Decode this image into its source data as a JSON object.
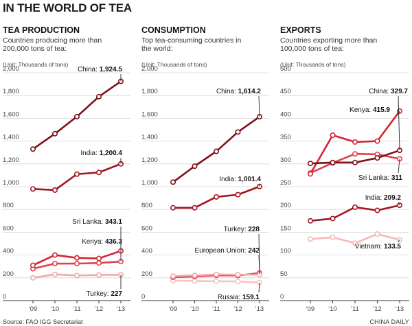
{
  "title": "IN THE WORLD OF TEA",
  "source": "Source: FAO IGG Secretariat",
  "credit": "CHINA DAILY",
  "colors": {
    "China": "#7a1218",
    "India": "#a3151f",
    "Kenya": "#d52230",
    "Sri Lanka": "#e3404d",
    "Turkey": "#f1aaa8",
    "European Union": "#e3404d",
    "Russia": "#f5c3c1",
    "Vietnam": "#f5b8b6",
    "grid": "#d4d4d4",
    "axis": "#333333"
  },
  "chart_data": [
    {
      "type": "line",
      "title": "TEA PRODUCTION",
      "subtitle": [
        "Countries producing more than",
        "200,000 tons of tea:"
      ],
      "unit": "(Unit: Thousands of tons)",
      "x": [
        "'09",
        "'10",
        "'11",
        "'12",
        "'13"
      ],
      "ylim": [
        0,
        2000
      ],
      "yticks": [
        0,
        200,
        400,
        600,
        800,
        "1,000",
        "1,200",
        "1,400",
        "1,600",
        "1,800",
        "2,000"
      ],
      "series": [
        {
          "name": "China",
          "values": [
            1330,
            1465,
            1615,
            1790,
            1924.5
          ],
          "label": "1,924.5"
        },
        {
          "name": "India",
          "values": [
            980,
            970,
            1110,
            1125,
            1200.4
          ],
          "label": "1,200.4"
        },
        {
          "name": "Kenya",
          "values": [
            310,
            400,
            375,
            370,
            436.3
          ],
          "label": "436.3"
        },
        {
          "name": "Sri Lanka",
          "values": [
            280,
            325,
            325,
            330,
            343.1
          ],
          "label": "343.1"
        },
        {
          "name": "Turkey",
          "values": [
            200,
            230,
            220,
            225,
            227
          ],
          "label": "227"
        }
      ]
    },
    {
      "type": "line",
      "title": "CONSUMPTION",
      "subtitle": [
        "Top tea-consuming countries in",
        "the world:"
      ],
      "unit": "(Unit: Thousands of tons)",
      "x": [
        "'09",
        "'10",
        "'11",
        "'12",
        "'13"
      ],
      "ylim": [
        0,
        2000
      ],
      "yticks": [
        0,
        200,
        400,
        600,
        800,
        "1,000",
        "1,200",
        "1,400",
        "1,600",
        "1,800",
        "2,000"
      ],
      "series": [
        {
          "name": "China",
          "values": [
            1040,
            1180,
            1310,
            1480,
            1614.2
          ],
          "label": "1,614.2"
        },
        {
          "name": "India",
          "values": [
            815,
            815,
            910,
            930,
            1001.4
          ],
          "label": "1,001.4"
        },
        {
          "name": "Turkey",
          "values": [
            215,
            222,
            230,
            228,
            228
          ],
          "label": "228"
        },
        {
          "name": "European Union",
          "values": [
            205,
            212,
            222,
            220,
            242
          ],
          "label": "242"
        },
        {
          "name": "Russia",
          "values": [
            175,
            172,
            170,
            168,
            159.1
          ],
          "label": "159.1"
        }
      ]
    },
    {
      "type": "line",
      "title": "EXPORTS",
      "subtitle": [
        "Countries exporting more than",
        "100,000 tons of tea:"
      ],
      "unit": "(Unit: Thousands of tons)",
      "x": [
        "'09",
        "'10",
        "'11",
        "'12",
        "'13"
      ],
      "ylim": [
        0,
        500
      ],
      "yticks": [
        0,
        50,
        100,
        150,
        200,
        250,
        300,
        350,
        400,
        450,
        500
      ],
      "series": [
        {
          "name": "China",
          "values": [
            301,
            303,
            303,
            313,
            329.7
          ],
          "label": "329.7"
        },
        {
          "name": "Kenya",
          "values": [
            278,
            363,
            348,
            350,
            415.9
          ],
          "label": "415.9"
        },
        {
          "name": "Sri Lanka",
          "values": [
            280,
            302,
            322,
            321,
            311
          ],
          "label": "311"
        },
        {
          "name": "India",
          "values": [
            175,
            180,
            205,
            198,
            209.2
          ],
          "label": "209.2"
        },
        {
          "name": "Vietnam",
          "values": [
            135,
            139,
            126,
            146,
            133.5
          ],
          "label": "133.5"
        }
      ]
    }
  ]
}
